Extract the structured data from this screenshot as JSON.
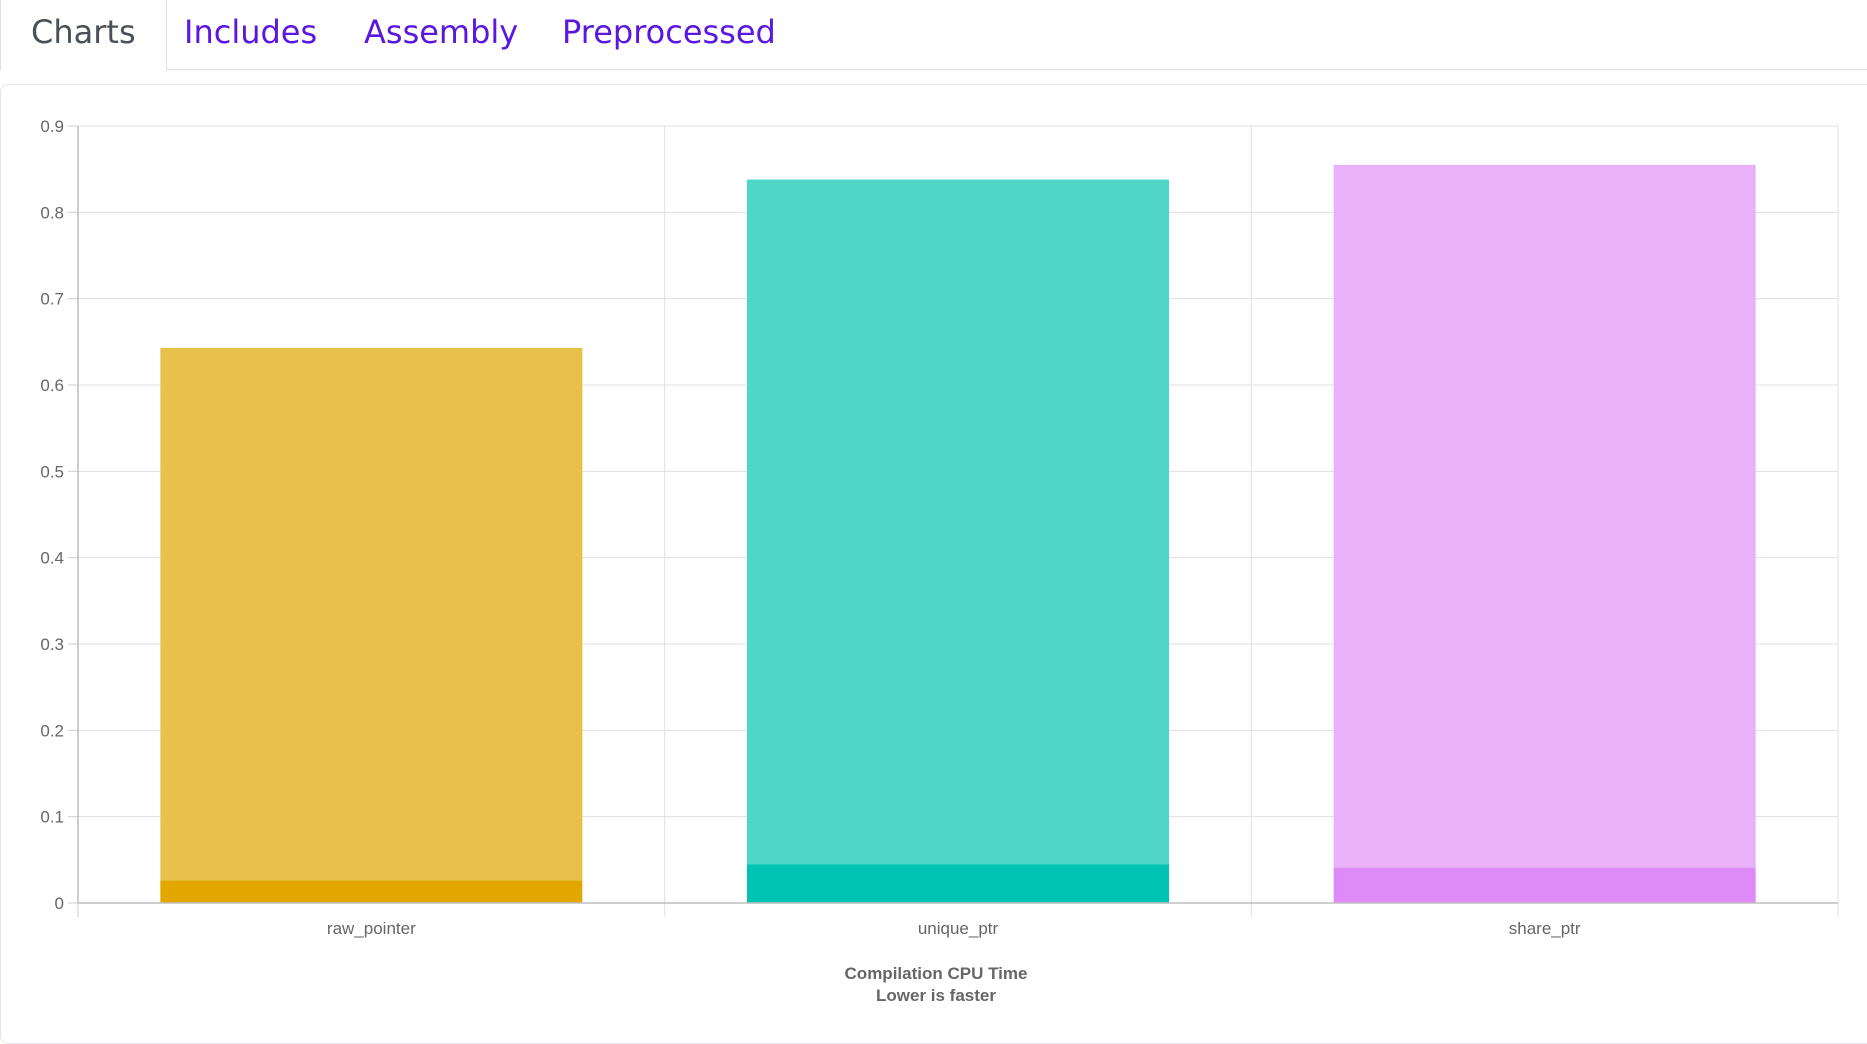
{
  "tabs": [
    {
      "label": "Charts",
      "active": true
    },
    {
      "label": "Includes",
      "active": false
    },
    {
      "label": "Assembly",
      "active": false
    },
    {
      "label": "Preprocessed",
      "active": false
    }
  ],
  "chart_data": {
    "type": "bar",
    "stacked": true,
    "categories": [
      "raw_pointer",
      "unique_ptr",
      "share_ptr"
    ],
    "series": [
      {
        "values": [
          0.026,
          0.045,
          0.041
        ],
        "colors": [
          "#e2a800",
          "#00c4b3",
          "#de8af8"
        ]
      },
      {
        "values": [
          0.617,
          0.793,
          0.814
        ],
        "colors": [
          "#e8c14d",
          "#4fd6c9",
          "#eab1fb"
        ]
      }
    ],
    "title": [
      "Compilation CPU Time",
      "Lower is faster"
    ],
    "xlabel": "",
    "ylabel": "",
    "ylim": [
      0,
      0.9
    ],
    "yticks": [
      0,
      0.1,
      0.2,
      0.3,
      0.4,
      0.5,
      0.6,
      0.7,
      0.8,
      0.9
    ],
    "yticklabels": [
      "0",
      "0.1",
      "0.2",
      "0.3",
      "0.4",
      "0.5",
      "0.6",
      "0.7",
      "0.8",
      "0.9"
    ],
    "grid": true,
    "legend": "none"
  }
}
